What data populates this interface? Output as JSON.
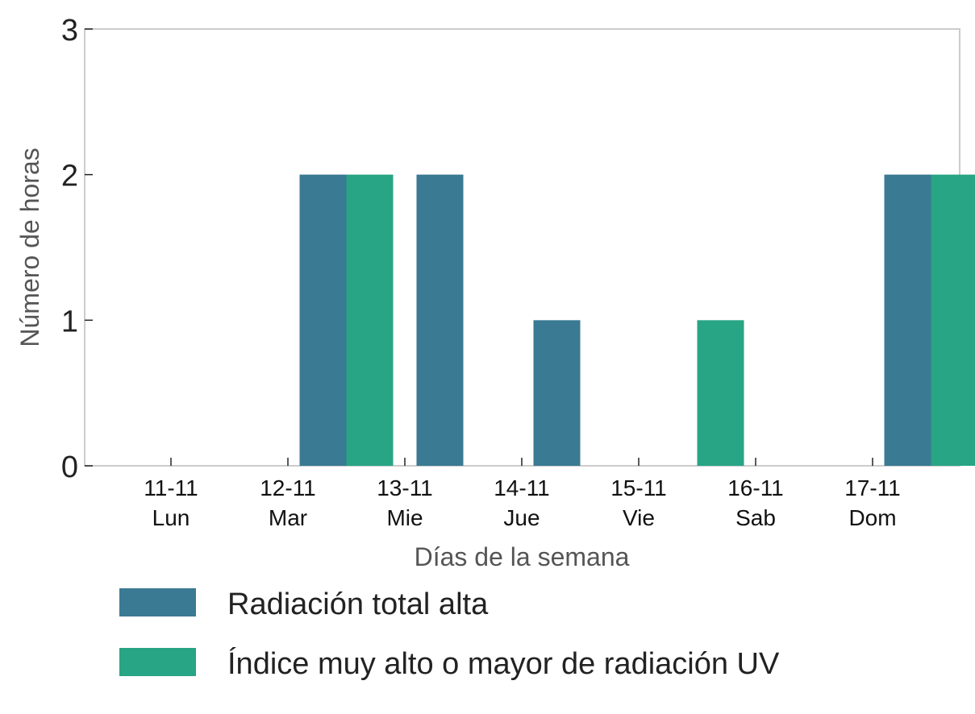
{
  "chart_data": {
    "type": "bar",
    "title": "",
    "xlabel": "Días de la semana",
    "ylabel": "Número de horas",
    "ylim": [
      0,
      3
    ],
    "yticks": [
      "0",
      "1",
      "2",
      "3"
    ],
    "grid": false,
    "legend_position": "bottom",
    "categories": [
      {
        "date": "11-11",
        "day": "Lun"
      },
      {
        "date": "12-11",
        "day": "Mar"
      },
      {
        "date": "13-11",
        "day": "Mie"
      },
      {
        "date": "14-11",
        "day": "Jue"
      },
      {
        "date": "15-11",
        "day": "Vie"
      },
      {
        "date": "16-11",
        "day": "Sab"
      },
      {
        "date": "17-11",
        "day": "Dom"
      }
    ],
    "series": [
      {
        "name": "Radiación total alta",
        "color": "#3a7a93",
        "values": [
          0,
          2,
          2,
          1,
          0,
          0,
          2
        ]
      },
      {
        "name": "Índice muy alto o mayor de radiación UV",
        "color": "#27a584",
        "values": [
          0,
          2,
          0,
          0,
          1,
          0,
          2
        ]
      }
    ]
  }
}
